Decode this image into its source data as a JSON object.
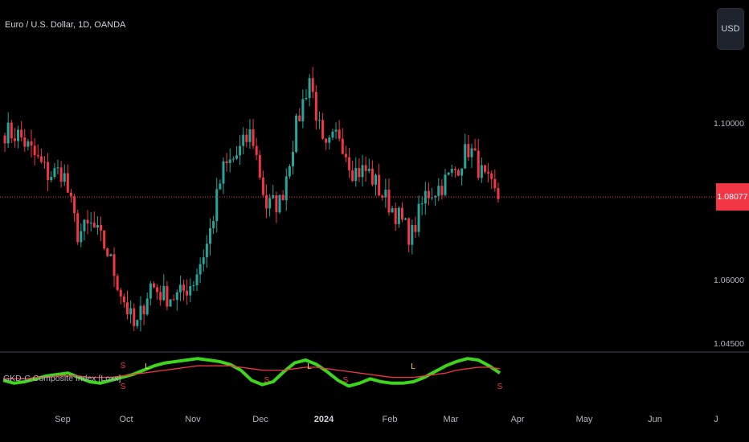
{
  "header": {
    "symbol_title": "Euro / U.S. Dollar, 1D, OANDA",
    "currency_button": "USD"
  },
  "price_axis": {
    "labels": [
      "1.10000",
      "1.06000",
      "1.04500"
    ],
    "current_price": "1.08077"
  },
  "indicator": {
    "title": "GKD-C Composite Index [Loxx]",
    "signal_long": "L",
    "signal_short": "S"
  },
  "time_axis": {
    "labels": [
      "Sep",
      "Oct",
      "Nov",
      "Dec",
      "2024",
      "Feb",
      "Mar",
      "Apr",
      "May",
      "Jun",
      "J"
    ]
  },
  "colors": {
    "background": "#000000",
    "up_candle": "#26a69a",
    "down_candle": "#f23645",
    "indicator_fast": "#3ed51d",
    "indicator_slow": "#f23645",
    "signal_long": "#ffd54f",
    "signal_short": "#f23645",
    "price_line": "#f23645"
  },
  "chart_data": {
    "type": "candlestick",
    "symbol": "EURUSD",
    "interval": "1D",
    "close_path": [
      [
        "2023-08-01",
        1.098
      ],
      [
        "2023-08-08",
        1.097
      ],
      [
        "2023-08-15",
        1.092
      ],
      [
        "2023-08-22",
        1.087
      ],
      [
        "2023-08-29",
        1.088
      ],
      [
        "2023-09-05",
        1.072
      ],
      [
        "2023-09-12",
        1.074
      ],
      [
        "2023-09-19",
        1.068
      ],
      [
        "2023-09-26",
        1.057
      ],
      [
        "2023-10-03",
        1.047
      ],
      [
        "2023-10-10",
        1.059
      ],
      [
        "2023-10-17",
        1.056
      ],
      [
        "2023-10-24",
        1.056
      ],
      [
        "2023-10-31",
        1.06
      ],
      [
        "2023-11-07",
        1.07
      ],
      [
        "2023-11-14",
        1.088
      ],
      [
        "2023-11-21",
        1.092
      ],
      [
        "2023-11-28",
        1.098
      ],
      [
        "2023-12-05",
        1.079
      ],
      [
        "2023-12-12",
        1.08
      ],
      [
        "2023-12-19",
        1.098
      ],
      [
        "2023-12-27",
        1.112
      ],
      [
        "2024-01-03",
        1.092
      ],
      [
        "2024-01-10",
        1.098
      ],
      [
        "2024-01-17",
        1.088
      ],
      [
        "2024-01-24",
        1.088
      ],
      [
        "2024-01-31",
        1.082
      ],
      [
        "2024-02-07",
        1.077
      ],
      [
        "2024-02-14",
        1.071
      ],
      [
        "2024-02-21",
        1.082
      ],
      [
        "2024-02-28",
        1.084
      ],
      [
        "2024-03-06",
        1.088
      ],
      [
        "2024-03-13",
        1.094
      ],
      [
        "2024-03-20",
        1.086
      ],
      [
        "2024-03-22",
        1.0808
      ]
    ],
    "current_close": 1.08077,
    "y_axis_ticks": [
      1.1,
      1.06,
      1.045
    ],
    "x_axis_ticks": [
      "Sep",
      "Oct",
      "Nov",
      "Dec",
      "2024",
      "Feb",
      "Mar",
      "Apr",
      "May",
      "Jun",
      "J"
    ],
    "indicator": {
      "name": "GKD-C Composite Index [Loxx]",
      "series": [
        {
          "name": "fast",
          "color": "#3ed51d",
          "values": [
            -0.4,
            -0.6,
            -0.5,
            -0.3,
            -0.1,
            0.0,
            0.1,
            -0.2,
            -0.5,
            -0.6,
            -0.4,
            -0.2,
            0.0,
            0.3,
            0.6,
            0.8,
            0.9,
            1.0,
            1.1,
            1.0,
            0.9,
            0.7,
            0.3,
            -0.4,
            -0.7,
            -0.5,
            0.2,
            0.8,
            1.0,
            0.7,
            0.2,
            -0.4,
            -0.8,
            -0.6,
            -0.3,
            -0.5,
            -0.6,
            -0.6,
            -0.5,
            -0.2,
            0.2,
            0.6,
            0.9,
            1.1,
            1.0,
            0.6,
            0.1
          ]
        },
        {
          "name": "slow",
          "color": "#f23645",
          "values": [
            -0.3,
            -0.3,
            -0.3,
            -0.2,
            -0.2,
            -0.1,
            -0.1,
            -0.1,
            -0.2,
            -0.2,
            -0.2,
            -0.1,
            0.0,
            0.1,
            0.2,
            0.3,
            0.4,
            0.5,
            0.6,
            0.6,
            0.6,
            0.6,
            0.5,
            0.4,
            0.3,
            0.3,
            0.3,
            0.4,
            0.5,
            0.5,
            0.4,
            0.3,
            0.2,
            0.1,
            0.0,
            -0.1,
            -0.2,
            -0.2,
            -0.2,
            -0.1,
            0.0,
            0.1,
            0.3,
            0.4,
            0.5,
            0.5,
            0.4
          ]
        }
      ]
    }
  }
}
